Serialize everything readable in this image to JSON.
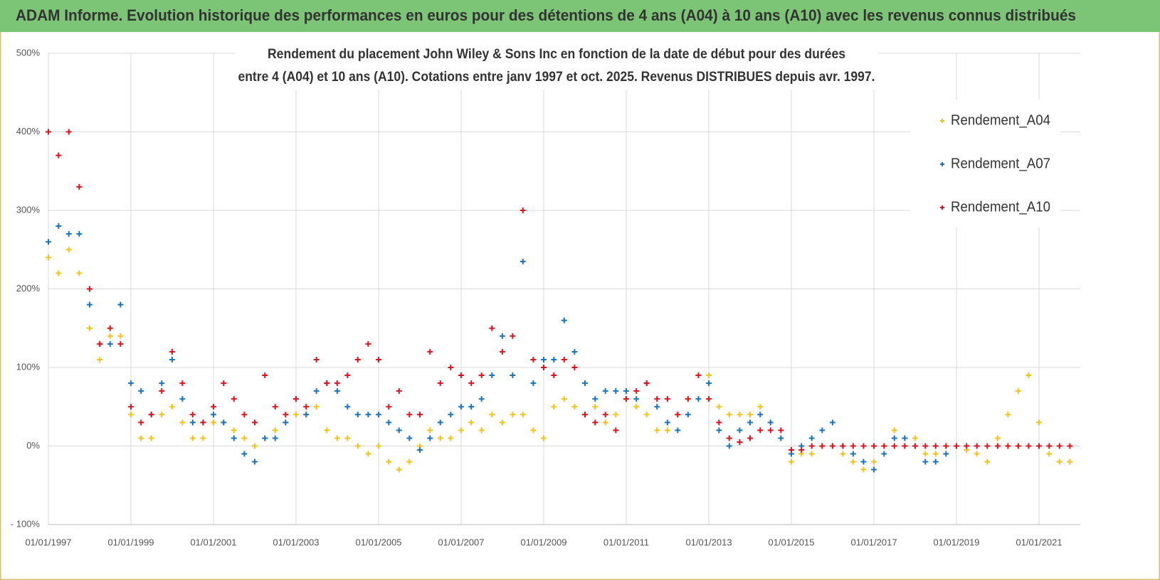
{
  "chart_data": {
    "type": "scatter",
    "title": "ADAM Informe. Evolution historique des performances en euros pour des détentions de 4 ans (A04) à 10 ans (A10) avec les revenus connus distribués",
    "subtitle": [
      "Rendement du placement John Wiley & Sons Inc en fonction de la date de début pour des durées",
      "entre 4 (A04) et 10 ans (A10). Cotations entre janv 1997 et oct. 2025. Revenus DISTRIBUES depuis avr. 1997."
    ],
    "x": [
      "1997-01-01",
      "1997-04-01",
      "1997-07-01",
      "1997-10-01",
      "1998-01-01",
      "1998-04-01",
      "1998-07-01",
      "1998-10-01",
      "1999-01-01",
      "1999-04-01",
      "1999-07-01",
      "1999-10-01",
      "2000-01-01",
      "2000-04-01",
      "2000-07-01",
      "2000-10-01",
      "2001-01-01",
      "2001-04-01",
      "2001-07-01",
      "2001-10-01",
      "2002-01-01",
      "2002-04-01",
      "2002-07-01",
      "2002-10-01",
      "2003-01-01",
      "2003-04-01",
      "2003-07-01",
      "2003-10-01",
      "2004-01-01",
      "2004-04-01",
      "2004-07-01",
      "2004-10-01",
      "2005-01-01",
      "2005-04-01",
      "2005-07-01",
      "2005-10-01",
      "2006-01-01",
      "2006-04-01",
      "2006-07-01",
      "2006-10-01",
      "2007-01-01",
      "2007-04-01",
      "2007-07-01",
      "2007-10-01",
      "2008-01-01",
      "2008-04-01",
      "2008-07-01",
      "2008-10-01",
      "2009-01-01",
      "2009-04-01",
      "2009-07-01",
      "2009-10-01",
      "2010-01-01",
      "2010-04-01",
      "2010-07-01",
      "2010-10-01",
      "2011-01-01",
      "2011-04-01",
      "2011-07-01",
      "2011-10-01",
      "2012-01-01",
      "2012-04-01",
      "2012-07-01",
      "2012-10-01",
      "2013-01-01",
      "2013-04-01",
      "2013-07-01",
      "2013-10-01",
      "2014-01-01",
      "2014-04-01",
      "2014-07-01",
      "2014-10-01",
      "2015-01-01",
      "2015-04-01",
      "2015-07-01",
      "2015-10-01",
      "2016-01-01",
      "2016-04-01",
      "2016-07-01",
      "2016-10-01",
      "2017-01-01",
      "2017-04-01",
      "2017-07-01",
      "2017-10-01",
      "2018-01-01",
      "2018-04-01",
      "2018-07-01",
      "2018-10-01",
      "2019-01-01",
      "2019-04-01",
      "2019-07-01",
      "2019-10-01",
      "2020-01-01",
      "2020-04-01",
      "2020-07-01",
      "2020-10-01",
      "2021-01-01",
      "2021-04-01",
      "2021-07-01",
      "2021-10-01"
    ],
    "series": [
      {
        "name": "Rendement_A04",
        "color": "#f5c217",
        "values": [
          240,
          220,
          250,
          220,
          150,
          110,
          140,
          140,
          40,
          10,
          10,
          40,
          50,
          30,
          10,
          10,
          30,
          30,
          20,
          10,
          0,
          10,
          20,
          30,
          40,
          40,
          50,
          20,
          10,
          10,
          0,
          -10,
          0,
          -20,
          -30,
          -20,
          0,
          20,
          10,
          10,
          20,
          30,
          20,
          40,
          30,
          40,
          40,
          20,
          10,
          50,
          60,
          50,
          40,
          50,
          30,
          40,
          60,
          50,
          40,
          20,
          20,
          40,
          60,
          90,
          90,
          50,
          40,
          40,
          40,
          50,
          30,
          10,
          -20,
          -10,
          -10,
          0,
          0,
          -10,
          -20,
          -30,
          -20,
          0,
          20,
          10,
          10,
          -10,
          -10,
          0,
          0,
          -5,
          -10,
          -20,
          10,
          40,
          70,
          90,
          30,
          -10,
          -20,
          -20
        ]
      },
      {
        "name": "Rendement_A07",
        "color": "#1a73c0",
        "values": [
          260,
          280,
          270,
          270,
          180,
          130,
          130,
          180,
          80,
          70,
          40,
          80,
          110,
          60,
          30,
          30,
          40,
          30,
          10,
          -10,
          -20,
          10,
          10,
          30,
          60,
          40,
          70,
          80,
          70,
          50,
          40,
          40,
          40,
          30,
          20,
          10,
          -5,
          10,
          30,
          40,
          50,
          50,
          60,
          90,
          140,
          90,
          235,
          80,
          110,
          110,
          160,
          120,
          80,
          60,
          70,
          70,
          70,
          60,
          80,
          50,
          30,
          20,
          40,
          60,
          80,
          20,
          0,
          20,
          30,
          40,
          30,
          10,
          -10,
          0,
          10,
          20,
          30,
          0,
          -10,
          -20,
          -30,
          -10,
          10,
          10,
          0,
          -20,
          -20,
          -10,
          null,
          null,
          null,
          null,
          null,
          null,
          null,
          null,
          null,
          null,
          null,
          null
        ]
      },
      {
        "name": "Rendement_A10",
        "color": "#e3101c",
        "values": [
          400,
          370,
          400,
          330,
          200,
          130,
          150,
          130,
          50,
          30,
          40,
          70,
          120,
          80,
          40,
          30,
          50,
          80,
          60,
          40,
          30,
          90,
          50,
          40,
          60,
          50,
          110,
          80,
          80,
          90,
          110,
          130,
          110,
          50,
          70,
          40,
          40,
          120,
          80,
          100,
          90,
          80,
          90,
          150,
          120,
          140,
          300,
          110,
          100,
          90,
          110,
          100,
          40,
          30,
          40,
          20,
          60,
          70,
          80,
          60,
          60,
          40,
          60,
          90,
          60,
          30,
          10,
          5,
          10,
          20,
          20,
          20,
          -5,
          -5,
          0,
          0,
          0,
          0,
          0,
          0,
          0,
          0,
          0,
          0,
          0,
          0,
          0,
          0,
          0,
          0,
          0,
          0,
          0,
          0,
          0,
          0,
          0,
          0,
          0,
          0
        ]
      }
    ],
    "xlim": [
      "1997-01-01",
      "2022-01-01"
    ],
    "xticks": [
      {
        "value": "1997-01-01",
        "label": "01/01/1997"
      },
      {
        "value": "1999-01-01",
        "label": "01/01/1999"
      },
      {
        "value": "2001-01-01",
        "label": "01/01/2001"
      },
      {
        "value": "2003-01-01",
        "label": "01/01/2003"
      },
      {
        "value": "2005-01-01",
        "label": "01/01/2005"
      },
      {
        "value": "2007-01-01",
        "label": "01/01/2007"
      },
      {
        "value": "2009-01-01",
        "label": "01/01/2009"
      },
      {
        "value": "2011-01-01",
        "label": "01/01/2011"
      },
      {
        "value": "2013-01-01",
        "label": "01/01/2013"
      },
      {
        "value": "2015-01-01",
        "label": "01/01/2015"
      },
      {
        "value": "2017-01-01",
        "label": "01/01/2017"
      },
      {
        "value": "2019-01-01",
        "label": "01/01/2019"
      },
      {
        "value": "2021-01-01",
        "label": "01/01/2021"
      }
    ],
    "ylim": [
      -100,
      500
    ],
    "yticks": [
      {
        "value": -100,
        "label": "- 100%"
      },
      {
        "value": 0,
        "label": "0%"
      },
      {
        "value": 100,
        "label": "100%"
      },
      {
        "value": 200,
        "label": "200%"
      },
      {
        "value": 300,
        "label": "300%"
      },
      {
        "value": 400,
        "label": "400%"
      },
      {
        "value": 500,
        "label": "500%"
      }
    ],
    "grid": true,
    "legend": "upper right"
  }
}
